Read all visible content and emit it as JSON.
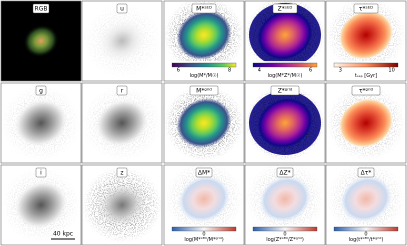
{
  "figure": {
    "panels": [
      {
        "label": "RGB",
        "colormap": "rgb"
      },
      {
        "label": "u",
        "colormap": "gray-light"
      },
      {
        "label": "M*ˢᴱᴰ",
        "colormap": "viridis",
        "colorbar": {
          "label": "log(M*/M☉)",
          "ticks": [
            "6",
            "8"
          ]
        }
      },
      {
        "label": "Z*ˢᴱᴰ",
        "colormap": "plasma",
        "colorbar": {
          "label": "log(M*Z*/M☉)",
          "ticks": [
            "4",
            "6"
          ]
        }
      },
      {
        "label": "τ*ˢᴱᴰ",
        "colormap": "reds",
        "colorbar": {
          "label": "tₛₛₚ [Gyr]",
          "ticks": [
            "3",
            "10"
          ]
        }
      },
      {
        "label": "g",
        "colormap": "gray"
      },
      {
        "label": "r",
        "colormap": "gray"
      },
      {
        "label": "M*ᵍʳⁱᵈ",
        "colormap": "viridis"
      },
      {
        "label": "Z*ᵍʳⁱᵈ",
        "colormap": "plasma"
      },
      {
        "label": "τ*ᵍʳⁱᵈ",
        "colormap": "reds"
      },
      {
        "label": "i",
        "colormap": "gray"
      },
      {
        "label": "z",
        "colormap": "gray-noisy"
      },
      {
        "label": "ΔM*",
        "colormap": "diverging",
        "colorbar": {
          "label": "log(M*ˢᴱᴰ/M*ᵍʳⁱᵈ)",
          "ticks": [
            "0"
          ]
        }
      },
      {
        "label": "ΔZ*",
        "colormap": "diverging",
        "colorbar": {
          "label": "log(Z*ˢᴱᴰ/Z*ᵍʳⁱᵈ)",
          "ticks": [
            "0"
          ]
        }
      },
      {
        "label": "Δτ*",
        "colormap": "diverging",
        "colorbar": {
          "label": "log(t*ˢᴱᴰ/t*ᵍʳⁱᵈ)",
          "ticks": [
            "0"
          ]
        }
      }
    ],
    "scale_bar": "40 kpc"
  }
}
